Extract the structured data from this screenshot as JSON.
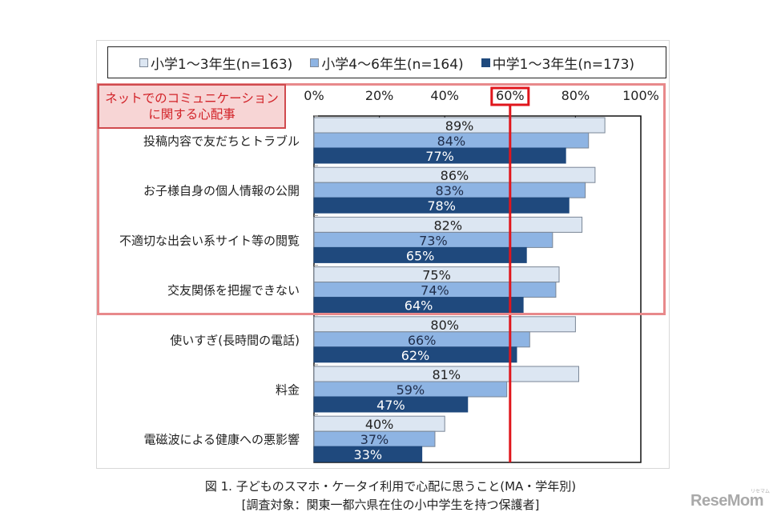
{
  "legend_box_label": "legend",
  "highlight": {
    "line1": "ネットでのコミュニケーション",
    "line2": "に関する心配事",
    "color": "#d22228"
  },
  "caption": {
    "line1": "図 1.  子どものスマホ・ケータイ利用で心配に思うこと(MA・学年別)",
    "line2": "[調査対象：関東一都六県在住の小中学生を持つ保護者]"
  },
  "logo": {
    "text": "ReseMom",
    "sub": "リセマム"
  },
  "chart_data": {
    "type": "bar",
    "orientation": "horizontal",
    "title": "",
    "xlabel": "",
    "ylabel": "",
    "xlim": [
      0,
      100
    ],
    "x_ticks": [
      "0%",
      "20%",
      "40%",
      "60%",
      "80%",
      "100%"
    ],
    "x_tick_values": [
      0,
      20,
      40,
      60,
      80,
      100
    ],
    "highlighted_tick": "60%",
    "reference_line": {
      "value": 60,
      "color": "#e0161c"
    },
    "legend_position": "top",
    "grid": false,
    "categories": [
      "投稿内容で友だちとトラブル",
      "お子様自身の個人情報の公開",
      "不適切な出会い系サイト等の閲覧",
      "交友関係を把握できない",
      "使いすぎ(長時間の電話)",
      "料金",
      "電磁波による健康への悪影響"
    ],
    "series": [
      {
        "name": "小学1～3年生(n=163)",
        "color": "#dce6f2",
        "label_color": "#222222",
        "values": [
          89,
          86,
          82,
          75,
          80,
          81,
          40
        ]
      },
      {
        "name": "小学4～6年生(n=164)",
        "color": "#8eb4e3",
        "label_color": "#1f2d4a",
        "values": [
          84,
          83,
          73,
          74,
          66,
          59,
          37
        ]
      },
      {
        "name": "中学1～3年生(n=173)",
        "color": "#1f497d",
        "label_color": "#ffffff",
        "values": [
          77,
          78,
          65,
          64,
          62,
          47,
          33
        ]
      }
    ],
    "value_suffix": "%"
  }
}
